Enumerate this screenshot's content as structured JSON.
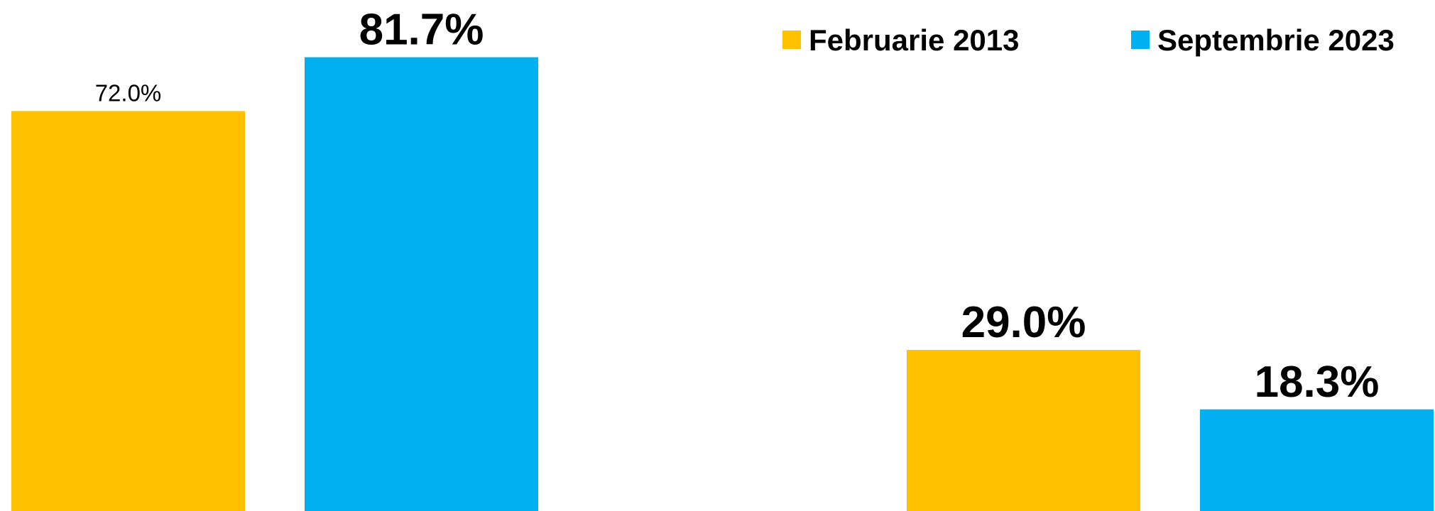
{
  "chart_data": {
    "type": "bar",
    "categories": [
      null,
      null
    ],
    "series": [
      {
        "name": "Februarie 2013",
        "color": "#FFC000",
        "values": [
          72.0,
          29.0
        ],
        "value_labels": [
          "72.0%",
          "29.0%"
        ]
      },
      {
        "name": "Septembrie 2023",
        "color": "#00B0F0",
        "values": [
          81.7,
          18.3
        ],
        "value_labels": [
          "81.7%",
          "18.3%"
        ]
      }
    ],
    "ylim": [
      0,
      92
    ],
    "legend": "top-right"
  }
}
